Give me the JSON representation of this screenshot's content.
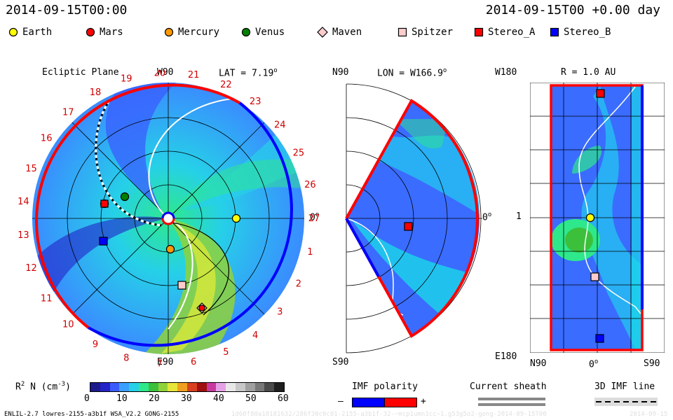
{
  "header": {
    "time_left": "2014-09-15T00:00",
    "time_right": "2014-09-15T00 +0.00 day"
  },
  "legend": [
    {
      "label": "Earth",
      "color": "#ffff00",
      "shape": "circle"
    },
    {
      "label": "Mars",
      "color": "#ff0000",
      "shape": "circle"
    },
    {
      "label": "Mercury",
      "color": "#ff9900",
      "shape": "circle"
    },
    {
      "label": "Venus",
      "color": "#008000",
      "shape": "circle"
    },
    {
      "label": "Maven",
      "color": "#ffcccc",
      "shape": "diamond"
    },
    {
      "label": "Spitzer",
      "color": "#ffcccc",
      "shape": "square"
    },
    {
      "label": "Stereo_A",
      "color": "#ff0000",
      "shape": "square"
    },
    {
      "label": "Stereo_B",
      "color": "#0000ff",
      "shape": "square"
    }
  ],
  "panel1": {
    "title": "Ecliptic Plane",
    "lat": "LAT = 7.19",
    "lat_deg": "o",
    "top": "W90",
    "bottom": "E90",
    "right": "0",
    "right_deg": "o",
    "carrington": [
      "19",
      "20",
      "21",
      "22",
      "23",
      "24",
      "25",
      "26",
      "27",
      "1",
      "2",
      "3",
      "4",
      "5",
      "6",
      "7",
      "8",
      "9",
      "10",
      "11",
      "12",
      "13",
      "14",
      "15",
      "16",
      "17",
      "18"
    ]
  },
  "panel2": {
    "top_left": "N90",
    "lon": "LON = W166.9",
    "lon_deg": "o",
    "bottom_left": "S90",
    "right": "0",
    "right_deg": "o"
  },
  "panel3": {
    "top_left": "W180",
    "r": "R = 1.0 AU",
    "mid_left": "1",
    "bottom_left": "E180",
    "x_left": "N90",
    "x_mid": "0",
    "x_mid_deg": "o",
    "x_right": "S90"
  },
  "colorbar": {
    "label": "R",
    "label_sup": "2",
    "label_rest": " N (cm",
    "label_exp": "-3",
    "label_end": ")",
    "ticks": [
      "0",
      "10",
      "20",
      "30",
      "40",
      "50",
      "60"
    ],
    "colors": [
      "#1b1b8c",
      "#2323c8",
      "#3a5cff",
      "#3aa0ff",
      "#26d0e8",
      "#2ee88c",
      "#3cc03c",
      "#8fd23a",
      "#e6e63a",
      "#f0a020",
      "#d84020",
      "#a01010",
      "#c83aa0",
      "#e6a0e6",
      "#e8e8e8",
      "#c8c8c8",
      "#a0a0a0",
      "#787878",
      "#4a4a4a",
      "#1e1e1e"
    ]
  },
  "imf": {
    "title": "IMF polarity",
    "minus": "–",
    "plus": "+",
    "neg_color": "#0000ff",
    "pos_color": "#ff0000"
  },
  "sheath": {
    "title": "Current sheath"
  },
  "imf3d": {
    "title": "3D IMF line"
  },
  "footer": {
    "model": "ENLIL-2.7 lowres-2155-a3b1f WSA_V2.2 GONG-2155",
    "run": "1d60f80a18181632/286f30c0c01-2155-a3b1f-32-~mcp1umn1cc~1.g53g5o2-gong-2014-09-15T00",
    "stamp": "2014-09-15"
  }
}
